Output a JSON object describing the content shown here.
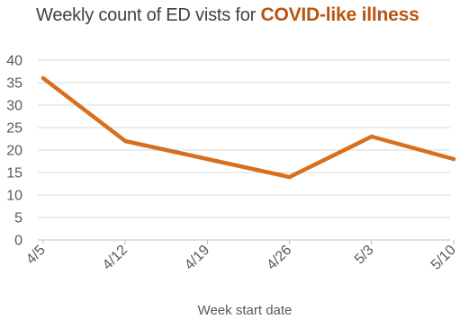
{
  "title": {
    "prefix": "Weekly count of ED vists for ",
    "highlight": "COVID-like illness"
  },
  "colors": {
    "series": "#D86F1C",
    "title_highlight": "#B85510",
    "grid": "#D9D9D9",
    "axis": "#BFBFBF",
    "text": "#595959"
  },
  "chart_data": {
    "type": "line",
    "title": "Weekly count of ED vists for COVID-like illness",
    "xlabel": "Week start date",
    "ylabel": "",
    "x": [
      "4/5",
      "4/12",
      "4/19",
      "4/26",
      "5/3",
      "5/10"
    ],
    "series": [
      {
        "values": [
          36,
          22,
          18,
          14,
          23,
          18
        ]
      }
    ],
    "ylim": [
      0,
      40
    ],
    "yticks": [
      0,
      5,
      10,
      15,
      20,
      25,
      30,
      35,
      40
    ],
    "grid": true,
    "legend": "none"
  }
}
